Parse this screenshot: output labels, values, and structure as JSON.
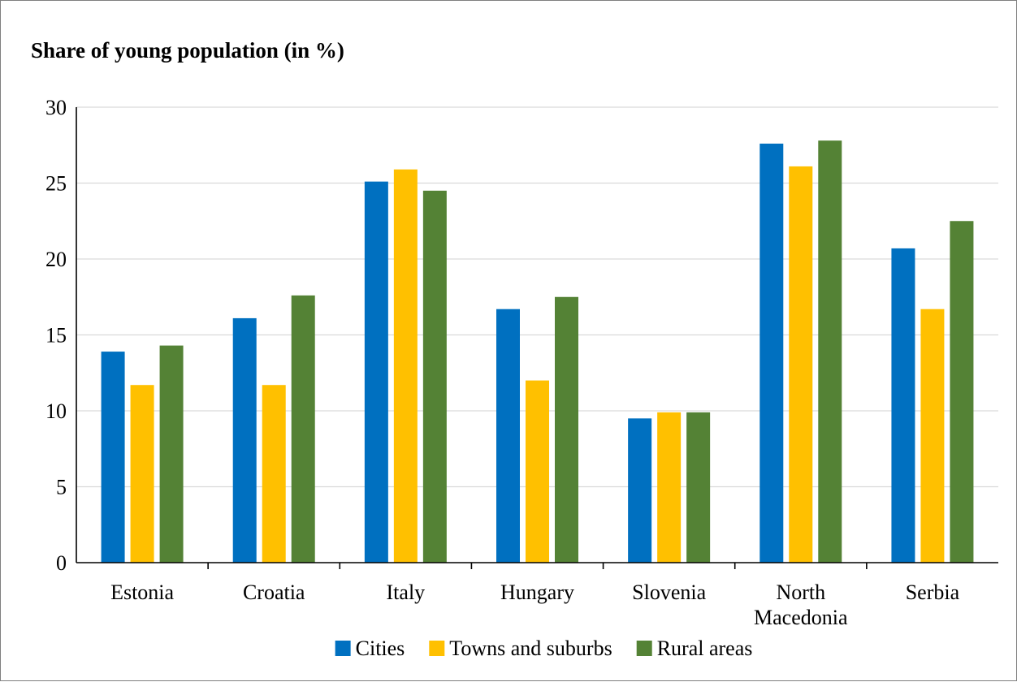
{
  "chart_data": {
    "type": "bar",
    "title": "Share of young population (in %)",
    "xlabel": "",
    "ylabel": "",
    "ylim": [
      0,
      30
    ],
    "yticks": [
      0,
      5,
      10,
      15,
      20,
      25,
      30
    ],
    "grid": true,
    "legend_position": "bottom",
    "categories": [
      "Estonia",
      "Croatia",
      "Italy",
      "Hungary",
      "Slovenia",
      "North Macedonia",
      "Serbia"
    ],
    "series": [
      {
        "name": "Cities",
        "color": "#0070c0",
        "values": [
          13.9,
          16.1,
          25.1,
          16.7,
          9.5,
          27.6,
          20.7
        ]
      },
      {
        "name": "Towns and suburbs",
        "color": "#ffc000",
        "values": [
          11.7,
          11.7,
          25.9,
          12.0,
          9.9,
          26.1,
          16.7
        ]
      },
      {
        "name": "Rural areas",
        "color": "#548235",
        "values": [
          14.3,
          17.6,
          24.5,
          17.5,
          9.9,
          27.8,
          22.5
        ]
      }
    ]
  }
}
